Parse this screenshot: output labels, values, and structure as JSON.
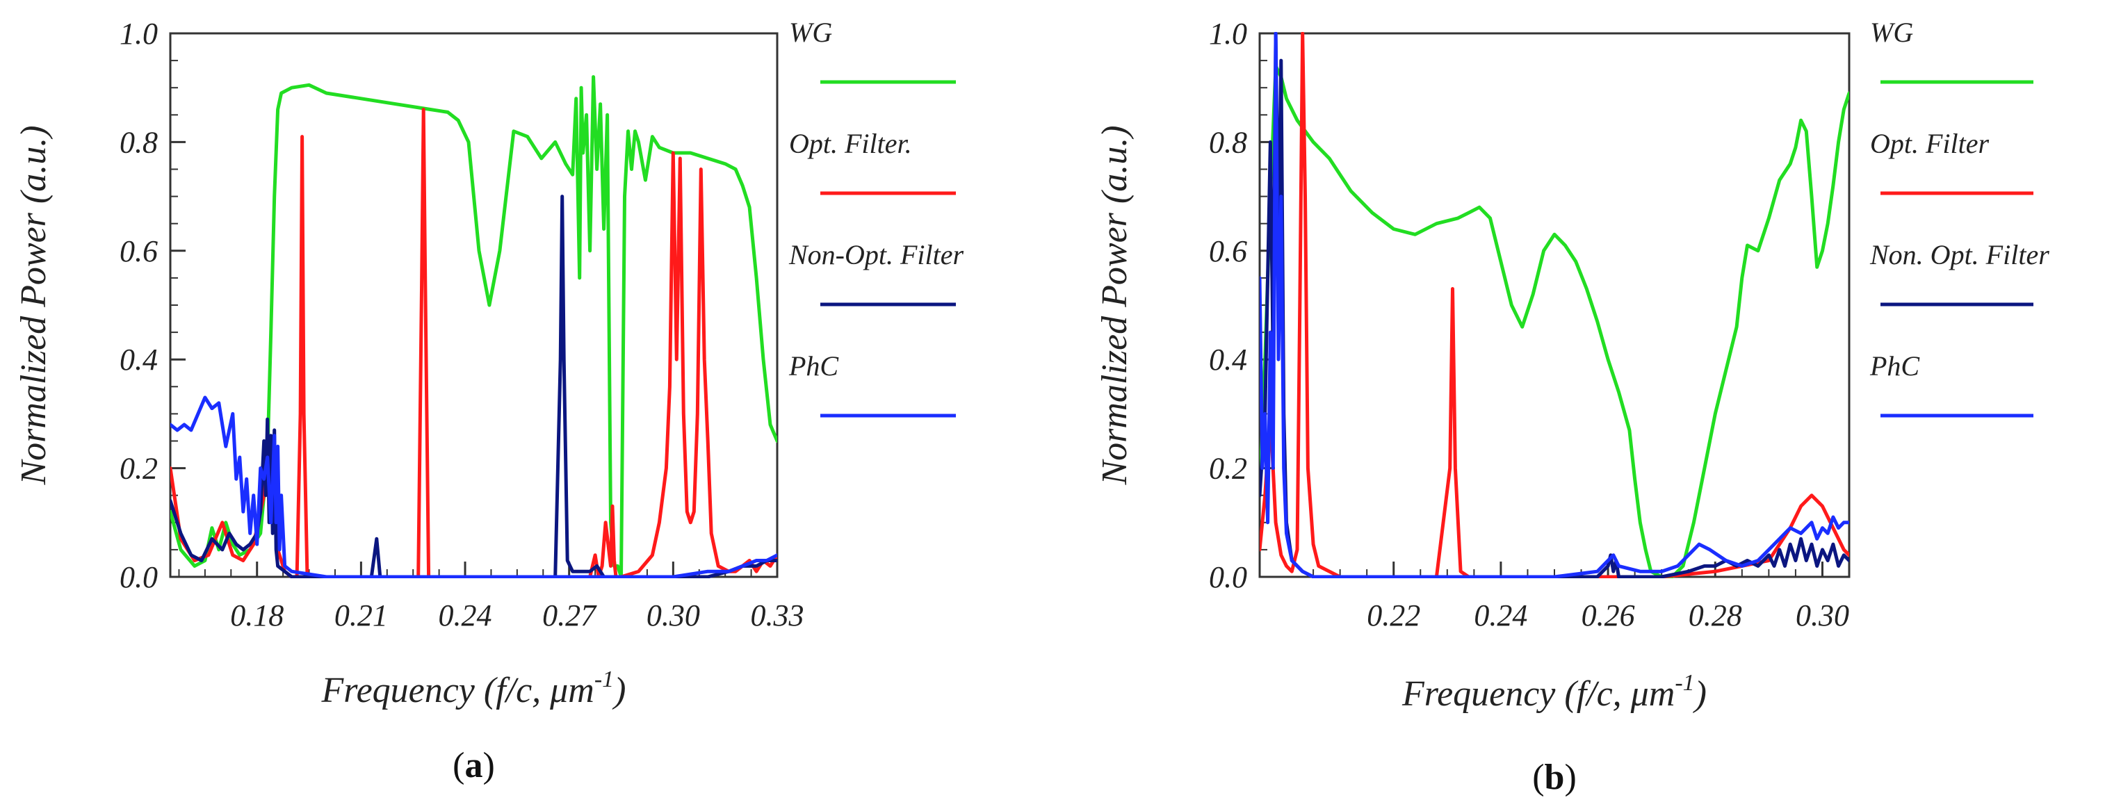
{
  "figure": {
    "panel_labels": [
      {
        "open": "(",
        "letter": "a",
        "close": ")"
      },
      {
        "open": "(",
        "letter": "b",
        "close": ")"
      }
    ]
  },
  "colors": {
    "WG": "#22dd22",
    "Opt": "#ff1a1a",
    "NonOpt": "#0b1680",
    "PhC": "#1a2eff"
  },
  "chart_data": [
    {
      "type": "line",
      "xlabel": "Frequency (f/c, μm",
      "xlabel_sup": "-1",
      "xlabel_close": ")",
      "ylabel": "Normalized Power (a.u.)",
      "xlim": [
        0.155,
        0.33
      ],
      "ylim": [
        0,
        1.0
      ],
      "xticks": [
        0.18,
        0.21,
        0.24,
        0.27,
        0.3,
        0.33
      ],
      "xtick_labels": [
        "0.18",
        "0.21",
        "0.24",
        "0.27",
        "0.30",
        "0.33"
      ],
      "yticks": [
        0.0,
        0.2,
        0.4,
        0.6,
        0.8,
        1.0
      ],
      "ytick_labels": [
        "0.0",
        "0.2",
        "0.4",
        "0.6",
        "0.8",
        "1.0"
      ],
      "legend": [
        "WG",
        "Opt. Filter.",
        "Non-Opt. Filter",
        "PhC"
      ],
      "series": [
        {
          "name": "WG",
          "colorKey": "WG",
          "x": [
            0.155,
            0.158,
            0.162,
            0.165,
            0.167,
            0.169,
            0.171,
            0.173,
            0.175,
            0.178,
            0.181,
            0.183,
            0.184,
            0.185,
            0.186,
            0.187,
            0.19,
            0.195,
            0.2,
            0.21,
            0.22,
            0.23,
            0.235,
            0.238,
            0.241,
            0.244,
            0.247,
            0.25,
            0.254,
            0.258,
            0.262,
            0.266,
            0.269,
            0.271,
            0.272,
            0.273,
            0.2735,
            0.274,
            0.275,
            0.276,
            0.277,
            0.278,
            0.279,
            0.28,
            0.281,
            0.282,
            0.283,
            0.284,
            0.285,
            0.286,
            0.287,
            0.288,
            0.289,
            0.29,
            0.292,
            0.294,
            0.296,
            0.3,
            0.305,
            0.31,
            0.315,
            0.318,
            0.32,
            0.322,
            0.324,
            0.326,
            0.328,
            0.33
          ],
          "values": [
            0.12,
            0.05,
            0.02,
            0.03,
            0.09,
            0.05,
            0.1,
            0.06,
            0.04,
            0.05,
            0.08,
            0.22,
            0.45,
            0.7,
            0.86,
            0.89,
            0.9,
            0.905,
            0.89,
            0.88,
            0.87,
            0.86,
            0.855,
            0.84,
            0.8,
            0.6,
            0.5,
            0.6,
            0.82,
            0.81,
            0.77,
            0.8,
            0.76,
            0.74,
            0.88,
            0.55,
            0.9,
            0.78,
            0.85,
            0.6,
            0.92,
            0.75,
            0.87,
            0.64,
            0.85,
            0.1,
            0.02,
            0.02,
            0.0,
            0.7,
            0.82,
            0.75,
            0.82,
            0.8,
            0.73,
            0.81,
            0.79,
            0.78,
            0.78,
            0.77,
            0.76,
            0.75,
            0.72,
            0.68,
            0.55,
            0.4,
            0.28,
            0.25
          ]
        },
        {
          "name": "Opt. Filter.",
          "colorKey": "Opt",
          "x": [
            0.155,
            0.158,
            0.162,
            0.166,
            0.17,
            0.173,
            0.176,
            0.179,
            0.182,
            0.184,
            0.186,
            0.188,
            0.19,
            0.1915,
            0.1925,
            0.193,
            0.1935,
            0.1945,
            0.196,
            0.2,
            0.21,
            0.22,
            0.224,
            0.2265,
            0.2275,
            0.228,
            0.2285,
            0.2295,
            0.232,
            0.25,
            0.27,
            0.276,
            0.2775,
            0.2785,
            0.2795,
            0.2805,
            0.282,
            0.2825,
            0.283,
            0.2835,
            0.285,
            0.29,
            0.294,
            0.296,
            0.298,
            0.299,
            0.3,
            0.301,
            0.302,
            0.303,
            0.304,
            0.305,
            0.306,
            0.307,
            0.308,
            0.309,
            0.31,
            0.311,
            0.313,
            0.316,
            0.318,
            0.32,
            0.322,
            0.324,
            0.326,
            0.328,
            0.33
          ],
          "values": [
            0.2,
            0.07,
            0.03,
            0.04,
            0.1,
            0.04,
            0.03,
            0.06,
            0.15,
            0.25,
            0.05,
            0.01,
            0.0,
            0.0,
            0.3,
            0.81,
            0.3,
            0.0,
            0.0,
            0.0,
            0.0,
            0.0,
            0.0,
            0.0,
            0.55,
            0.86,
            0.55,
            0.0,
            0.0,
            0.0,
            0.0,
            0.0,
            0.04,
            0.0,
            0.02,
            0.1,
            0.02,
            0.13,
            0.03,
            0.0,
            0.0,
            0.01,
            0.04,
            0.1,
            0.2,
            0.35,
            0.78,
            0.4,
            0.77,
            0.3,
            0.12,
            0.1,
            0.12,
            0.3,
            0.75,
            0.4,
            0.25,
            0.08,
            0.02,
            0.01,
            0.01,
            0.02,
            0.03,
            0.01,
            0.03,
            0.02,
            0.04
          ]
        },
        {
          "name": "Non-Opt. Filter",
          "colorKey": "NonOpt",
          "x": [
            0.155,
            0.158,
            0.161,
            0.164,
            0.167,
            0.17,
            0.172,
            0.174,
            0.176,
            0.178,
            0.18,
            0.181,
            0.182,
            0.1825,
            0.183,
            0.1835,
            0.184,
            0.1845,
            0.185,
            0.1855,
            0.186,
            0.188,
            0.19,
            0.2,
            0.21,
            0.213,
            0.2145,
            0.2155,
            0.218,
            0.24,
            0.26,
            0.266,
            0.2675,
            0.268,
            0.2685,
            0.2695,
            0.271,
            0.274,
            0.276,
            0.278,
            0.28,
            0.29,
            0.3,
            0.31,
            0.316,
            0.32,
            0.324,
            0.327,
            0.33
          ],
          "values": [
            0.14,
            0.08,
            0.04,
            0.03,
            0.07,
            0.05,
            0.08,
            0.06,
            0.05,
            0.06,
            0.08,
            0.12,
            0.25,
            0.15,
            0.29,
            0.1,
            0.26,
            0.08,
            0.27,
            0.05,
            0.02,
            0.01,
            0.0,
            0.0,
            0.0,
            0.0,
            0.07,
            0.0,
            0.0,
            0.0,
            0.0,
            0.0,
            0.4,
            0.7,
            0.4,
            0.03,
            0.01,
            0.01,
            0.01,
            0.02,
            0.0,
            0.0,
            0.0,
            0.0,
            0.01,
            0.02,
            0.02,
            0.03,
            0.03
          ]
        },
        {
          "name": "PhC",
          "colorKey": "PhC",
          "x": [
            0.155,
            0.157,
            0.159,
            0.161,
            0.163,
            0.165,
            0.167,
            0.169,
            0.171,
            0.173,
            0.174,
            0.175,
            0.176,
            0.177,
            0.178,
            0.179,
            0.18,
            0.181,
            0.182,
            0.183,
            0.184,
            0.185,
            0.1855,
            0.186,
            0.1865,
            0.187,
            0.188,
            0.19,
            0.2,
            0.22,
            0.24,
            0.26,
            0.28,
            0.3,
            0.31,
            0.316,
            0.32,
            0.324,
            0.327,
            0.33
          ],
          "values": [
            0.28,
            0.27,
            0.28,
            0.27,
            0.3,
            0.33,
            0.31,
            0.32,
            0.24,
            0.3,
            0.18,
            0.22,
            0.12,
            0.18,
            0.08,
            0.15,
            0.06,
            0.2,
            0.18,
            0.22,
            0.1,
            0.26,
            0.1,
            0.24,
            0.05,
            0.15,
            0.02,
            0.01,
            0.0,
            0.0,
            0.0,
            0.0,
            0.0,
            0.0,
            0.01,
            0.01,
            0.02,
            0.03,
            0.03,
            0.04
          ]
        }
      ]
    },
    {
      "type": "line",
      "xlabel": "Frequency (f/c, μm",
      "xlabel_sup": "-1",
      "xlabel_close": ")",
      "ylabel": "Normalized Power (a.u.)",
      "xlim": [
        0.195,
        0.305
      ],
      "ylim": [
        0,
        1.0
      ],
      "xticks": [
        0.22,
        0.24,
        0.26,
        0.28,
        0.3
      ],
      "xtick_labels": [
        "0.22",
        "0.24",
        "0.26",
        "0.28",
        "0.30"
      ],
      "yticks": [
        0.0,
        0.2,
        0.4,
        0.6,
        0.8,
        1.0
      ],
      "ytick_labels": [
        "0.0",
        "0.2",
        "0.4",
        "0.6",
        "0.8",
        "1.0"
      ],
      "legend": [
        "WG",
        "Opt. Filter",
        "Non. Opt. Filter",
        "PhC"
      ],
      "series": [
        {
          "name": "WG",
          "colorKey": "WG",
          "x": [
            0.195,
            0.196,
            0.197,
            0.198,
            0.199,
            0.2,
            0.202,
            0.205,
            0.208,
            0.212,
            0.216,
            0.22,
            0.224,
            0.228,
            0.232,
            0.234,
            0.236,
            0.238,
            0.24,
            0.242,
            0.244,
            0.246,
            0.248,
            0.25,
            0.252,
            0.254,
            0.256,
            0.258,
            0.26,
            0.262,
            0.264,
            0.265,
            0.266,
            0.267,
            0.268,
            0.27,
            0.272,
            0.274,
            0.276,
            0.278,
            0.28,
            0.282,
            0.284,
            0.285,
            0.286,
            0.288,
            0.29,
            0.292,
            0.294,
            0.295,
            0.296,
            0.297,
            0.298,
            0.299,
            0.3,
            0.301,
            0.302,
            0.303,
            0.304,
            0.305
          ],
          "values": [
            0.15,
            0.4,
            0.7,
            0.94,
            0.92,
            0.88,
            0.84,
            0.8,
            0.77,
            0.71,
            0.67,
            0.64,
            0.63,
            0.65,
            0.66,
            0.67,
            0.68,
            0.66,
            0.58,
            0.5,
            0.46,
            0.52,
            0.6,
            0.63,
            0.61,
            0.58,
            0.53,
            0.47,
            0.4,
            0.34,
            0.27,
            0.18,
            0.1,
            0.05,
            0.01,
            0.0,
            0.0,
            0.02,
            0.1,
            0.2,
            0.3,
            0.38,
            0.46,
            0.55,
            0.61,
            0.6,
            0.66,
            0.73,
            0.76,
            0.79,
            0.84,
            0.82,
            0.7,
            0.57,
            0.6,
            0.65,
            0.72,
            0.8,
            0.86,
            0.89
          ]
        },
        {
          "name": "Opt. Filter",
          "colorKey": "Opt",
          "x": [
            0.195,
            0.196,
            0.197,
            0.198,
            0.199,
            0.2,
            0.201,
            0.202,
            0.2025,
            0.203,
            0.2035,
            0.204,
            0.205,
            0.206,
            0.21,
            0.22,
            0.228,
            0.2305,
            0.231,
            0.2315,
            0.2325,
            0.234,
            0.25,
            0.27,
            0.28,
            0.285,
            0.29,
            0.292,
            0.294,
            0.296,
            0.298,
            0.3,
            0.302,
            0.304,
            0.305
          ],
          "values": [
            0.05,
            0.15,
            0.3,
            0.1,
            0.04,
            0.02,
            0.01,
            0.05,
            0.5,
            1.0,
            0.7,
            0.2,
            0.06,
            0.02,
            0.0,
            0.0,
            0.0,
            0.2,
            0.53,
            0.2,
            0.01,
            0.0,
            0.0,
            0.0,
            0.01,
            0.02,
            0.03,
            0.06,
            0.09,
            0.13,
            0.15,
            0.13,
            0.09,
            0.05,
            0.04
          ]
        },
        {
          "name": "Non. Opt. Filter",
          "colorKey": "NonOpt",
          "x": [
            0.195,
            0.196,
            0.197,
            0.1975,
            0.198,
            0.1985,
            0.199,
            0.1995,
            0.2,
            0.201,
            0.203,
            0.205,
            0.22,
            0.25,
            0.258,
            0.26,
            0.2605,
            0.261,
            0.2615,
            0.262,
            0.265,
            0.27,
            0.275,
            0.278,
            0.28,
            0.282,
            0.284,
            0.286,
            0.288,
            0.29,
            0.291,
            0.292,
            0.293,
            0.294,
            0.295,
            0.296,
            0.297,
            0.298,
            0.299,
            0.3,
            0.301,
            0.302,
            0.303,
            0.304,
            0.305
          ],
          "values": [
            0.15,
            0.3,
            0.8,
            0.4,
            1.0,
            0.6,
            0.95,
            0.3,
            0.1,
            0.03,
            0.01,
            0.0,
            0.0,
            0.0,
            0.0,
            0.02,
            0.04,
            0.01,
            0.03,
            0.0,
            0.0,
            0.0,
            0.01,
            0.02,
            0.02,
            0.03,
            0.02,
            0.03,
            0.02,
            0.04,
            0.02,
            0.05,
            0.02,
            0.06,
            0.03,
            0.07,
            0.03,
            0.06,
            0.02,
            0.05,
            0.03,
            0.06,
            0.02,
            0.04,
            0.03
          ]
        },
        {
          "name": "PhC",
          "colorKey": "PhC",
          "x": [
            0.195,
            0.1955,
            0.196,
            0.1965,
            0.197,
            0.1975,
            0.198,
            0.1985,
            0.199,
            0.1995,
            0.2,
            0.201,
            0.203,
            0.205,
            0.22,
            0.25,
            0.258,
            0.26,
            0.261,
            0.262,
            0.266,
            0.27,
            0.273,
            0.275,
            0.277,
            0.279,
            0.282,
            0.285,
            0.288,
            0.29,
            0.292,
            0.294,
            0.296,
            0.298,
            0.299,
            0.3,
            0.301,
            0.302,
            0.303,
            0.304,
            0.305
          ],
          "values": [
            0.55,
            0.2,
            0.3,
            0.1,
            0.45,
            0.2,
            1.0,
            0.4,
            0.7,
            0.2,
            0.08,
            0.03,
            0.01,
            0.0,
            0.0,
            0.0,
            0.01,
            0.03,
            0.04,
            0.02,
            0.01,
            0.01,
            0.02,
            0.04,
            0.06,
            0.05,
            0.03,
            0.02,
            0.03,
            0.05,
            0.07,
            0.09,
            0.08,
            0.1,
            0.07,
            0.09,
            0.08,
            0.11,
            0.09,
            0.1,
            0.1
          ]
        }
      ]
    }
  ]
}
